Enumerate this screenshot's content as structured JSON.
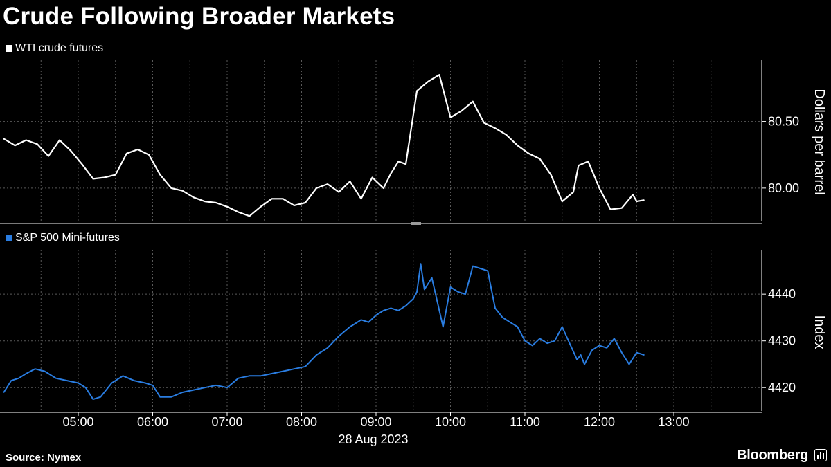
{
  "title": "Crude Following Broader Markets",
  "source": "Source: Nymex",
  "brand": "Bloomberg",
  "date_label": "28 Aug 2023",
  "colors": {
    "background": "#000000",
    "crude": "#ffffff",
    "spx": "#2a7de1",
    "grid": "#5a5a5a"
  },
  "chart_data": [
    {
      "type": "line",
      "legend": "WTI crude futures",
      "ylabel": "Dollars per barrel",
      "ylim": [
        79.75,
        80.96
      ],
      "yticks": [
        80.0,
        80.5
      ],
      "ytick_labels": [
        "80.00",
        "80.50"
      ],
      "x_ticks": [
        "05:00",
        "06:00",
        "07:00",
        "08:00",
        "09:00",
        "10:00",
        "11:00",
        "12:00",
        "13:00"
      ],
      "x_hours": [
        4.0,
        4.15,
        4.3,
        4.45,
        4.6,
        4.75,
        4.9,
        5.05,
        5.2,
        5.35,
        5.5,
        5.65,
        5.8,
        5.95,
        6.1,
        6.25,
        6.4,
        6.55,
        6.7,
        6.85,
        7.0,
        7.15,
        7.3,
        7.45,
        7.6,
        7.75,
        7.9,
        8.05,
        8.2,
        8.35,
        8.5,
        8.65,
        8.8,
        8.95,
        9.1,
        9.2,
        9.3,
        9.4,
        9.55,
        9.7,
        9.85,
        10.0,
        10.15,
        10.3,
        10.45,
        10.6,
        10.75,
        10.9,
        11.05,
        11.2,
        11.35,
        11.5,
        11.65,
        11.72,
        11.85,
        12.0,
        12.15,
        12.3,
        12.45,
        12.5,
        12.6
      ],
      "values": [
        80.37,
        80.32,
        80.36,
        80.33,
        80.24,
        80.36,
        80.28,
        80.18,
        80.07,
        80.08,
        80.1,
        80.26,
        80.29,
        80.25,
        80.1,
        80.0,
        79.98,
        79.93,
        79.9,
        79.89,
        79.86,
        79.82,
        79.79,
        79.86,
        79.92,
        79.92,
        79.87,
        79.89,
        80.0,
        80.03,
        79.97,
        80.05,
        79.92,
        80.08,
        80.0,
        80.11,
        80.2,
        80.18,
        80.73,
        80.8,
        80.85,
        80.53,
        80.58,
        80.65,
        80.49,
        80.45,
        80.4,
        80.32,
        80.26,
        80.22,
        80.1,
        79.9,
        79.97,
        80.17,
        80.2,
        80.0,
        79.84,
        79.85,
        79.95,
        79.9,
        79.91
      ]
    },
    {
      "type": "line",
      "legend": "S&P 500 Mini-futures",
      "ylabel": "Index",
      "ylim": [
        4415,
        4449.5
      ],
      "yticks": [
        4420,
        4430,
        4440
      ],
      "ytick_labels": [
        "4420",
        "4430",
        "4440"
      ],
      "x_ticks": [
        "05:00",
        "06:00",
        "07:00",
        "08:00",
        "09:00",
        "10:00",
        "11:00",
        "12:00",
        "13:00"
      ],
      "x_hours": [
        4.0,
        4.1,
        4.2,
        4.3,
        4.42,
        4.55,
        4.7,
        4.85,
        5.0,
        5.1,
        5.2,
        5.3,
        5.45,
        5.6,
        5.75,
        5.9,
        6.0,
        6.1,
        6.25,
        6.4,
        6.55,
        6.7,
        6.85,
        7.0,
        7.15,
        7.3,
        7.45,
        7.6,
        7.75,
        7.9,
        8.05,
        8.2,
        8.35,
        8.5,
        8.65,
        8.8,
        8.9,
        9.0,
        9.1,
        9.2,
        9.3,
        9.4,
        9.5,
        9.55,
        9.6,
        9.65,
        9.75,
        9.8,
        9.9,
        10.0,
        10.1,
        10.2,
        10.3,
        10.4,
        10.5,
        10.55,
        10.6,
        10.7,
        10.8,
        10.9,
        11.0,
        11.1,
        11.2,
        11.3,
        11.4,
        11.5,
        11.6,
        11.7,
        11.75,
        11.8,
        11.9,
        12.0,
        12.1,
        12.2,
        12.3,
        12.4,
        12.5,
        12.6
      ],
      "values": [
        4419.0,
        4421.5,
        4422.0,
        4423.0,
        4424.0,
        4423.5,
        4422.0,
        4421.5,
        4421.0,
        4420.0,
        4417.5,
        4418.0,
        4421.0,
        4422.5,
        4421.5,
        4421.0,
        4420.5,
        4418.0,
        4418.0,
        4419.0,
        4419.5,
        4420.0,
        4420.5,
        4420.0,
        4422.0,
        4422.5,
        4422.5,
        4423.0,
        4423.5,
        4424.0,
        4424.5,
        4427.0,
        4428.5,
        4431.0,
        4433.0,
        4434.5,
        4434.0,
        4435.5,
        4436.5,
        4437.0,
        4436.5,
        4437.5,
        4439.0,
        4440.5,
        4446.5,
        4441.0,
        4443.5,
        4440.0,
        4433.0,
        4441.5,
        4440.5,
        4440.0,
        4446.0,
        4445.5,
        4445.0,
        4441.0,
        4437.0,
        4435.0,
        4434.0,
        4433.0,
        4430.0,
        4429.0,
        4430.5,
        4429.5,
        4430.0,
        4433.0,
        4429.5,
        4426.0,
        4427.0,
        4425.0,
        4428.0,
        4429.0,
        4428.5,
        4430.5,
        4427.5,
        4425.0,
        4427.5,
        4427.0
      ]
    }
  ]
}
